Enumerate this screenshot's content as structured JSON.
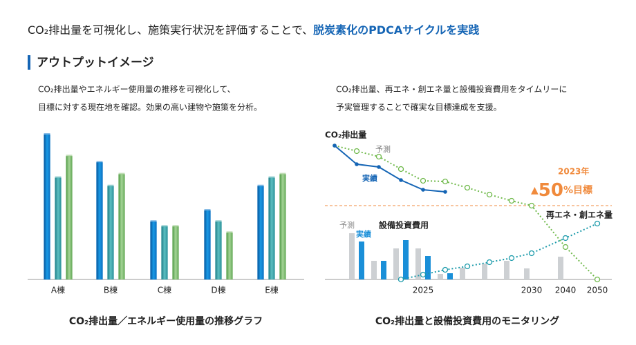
{
  "headline": {
    "text": "CO₂排出量を可視化し、施策実行状況を評価することで、",
    "highlight": "脱炭素化のPDCAサイクルを実践"
  },
  "section_title": "アウトプットイメージ",
  "chart_data": [
    {
      "type": "bar",
      "description": [
        "CO₂排出量やエネルギー使用量の推移を可視化して、",
        "目標に対する現在地を確認。効果の高い建物や施策を分析。"
      ],
      "caption": "CO₂排出量／エネルギー使用量の推移グラフ",
      "categories": [
        "A棟",
        "B棟",
        "C棟",
        "D棟",
        "E棟"
      ],
      "series": [
        {
          "color": "#0a78cc",
          "values": [
            208,
            168,
            83,
            99,
            134
          ]
        },
        {
          "color": "#3aa3a8",
          "values": [
            146,
            134,
            76,
            83,
            146
          ]
        },
        {
          "color": "#7dba6a",
          "values": [
            177,
            151,
            76,
            67,
            151
          ]
        }
      ]
    },
    {
      "type": "combo",
      "description": [
        "CO₂排出量、再エネ・創エネ量と設備投資費用をタイムリーに",
        "予実管理することで確実な目標達成を支援。"
      ],
      "caption": "CO₂排出量と設備投資費用のモニタリング",
      "categories": [
        null,
        null,
        null,
        null,
        "2025",
        null,
        null,
        null,
        null,
        "2030",
        "2040",
        "2050"
      ],
      "line_group": "CO₂排出量",
      "bar_group": "設備投資費用",
      "lines": [
        {
          "name": "予測",
          "color": "#6fb94a",
          "style": "dotted",
          "values": [
            194,
            186,
            178,
            160,
            143,
            142,
            133,
            123,
            114,
            107,
            47,
            0
          ]
        },
        {
          "name": "実績",
          "color": "#1565b5",
          "style": "solid",
          "values": [
            194,
            167,
            163,
            144,
            130,
            127,
            null,
            null,
            null,
            null,
            null,
            null
          ]
        },
        {
          "name": "再エネ・創エネ量",
          "color": "#1a9aaa",
          "style": "dotted",
          "values": [
            null,
            null,
            null,
            0,
            7,
            14,
            19,
            25,
            31,
            38,
            60,
            81
          ]
        }
      ],
      "bars": [
        {
          "name": "予測",
          "color": "#cdd0d3",
          "values": [
            null,
            67,
            27,
            45,
            45,
            8,
            17,
            23,
            27,
            16,
            33,
            null
          ]
        },
        {
          "name": "実績",
          "color": "#1a8fd8",
          "values": [
            null,
            55,
            27,
            57,
            34,
            9,
            null,
            null,
            null,
            null,
            null,
            null
          ]
        }
      ],
      "target": {
        "value": 107,
        "color": "#f08a3c",
        "year": "2023年",
        "marker": "▲",
        "percent": "50",
        "suffix": "%目標"
      }
    }
  ]
}
